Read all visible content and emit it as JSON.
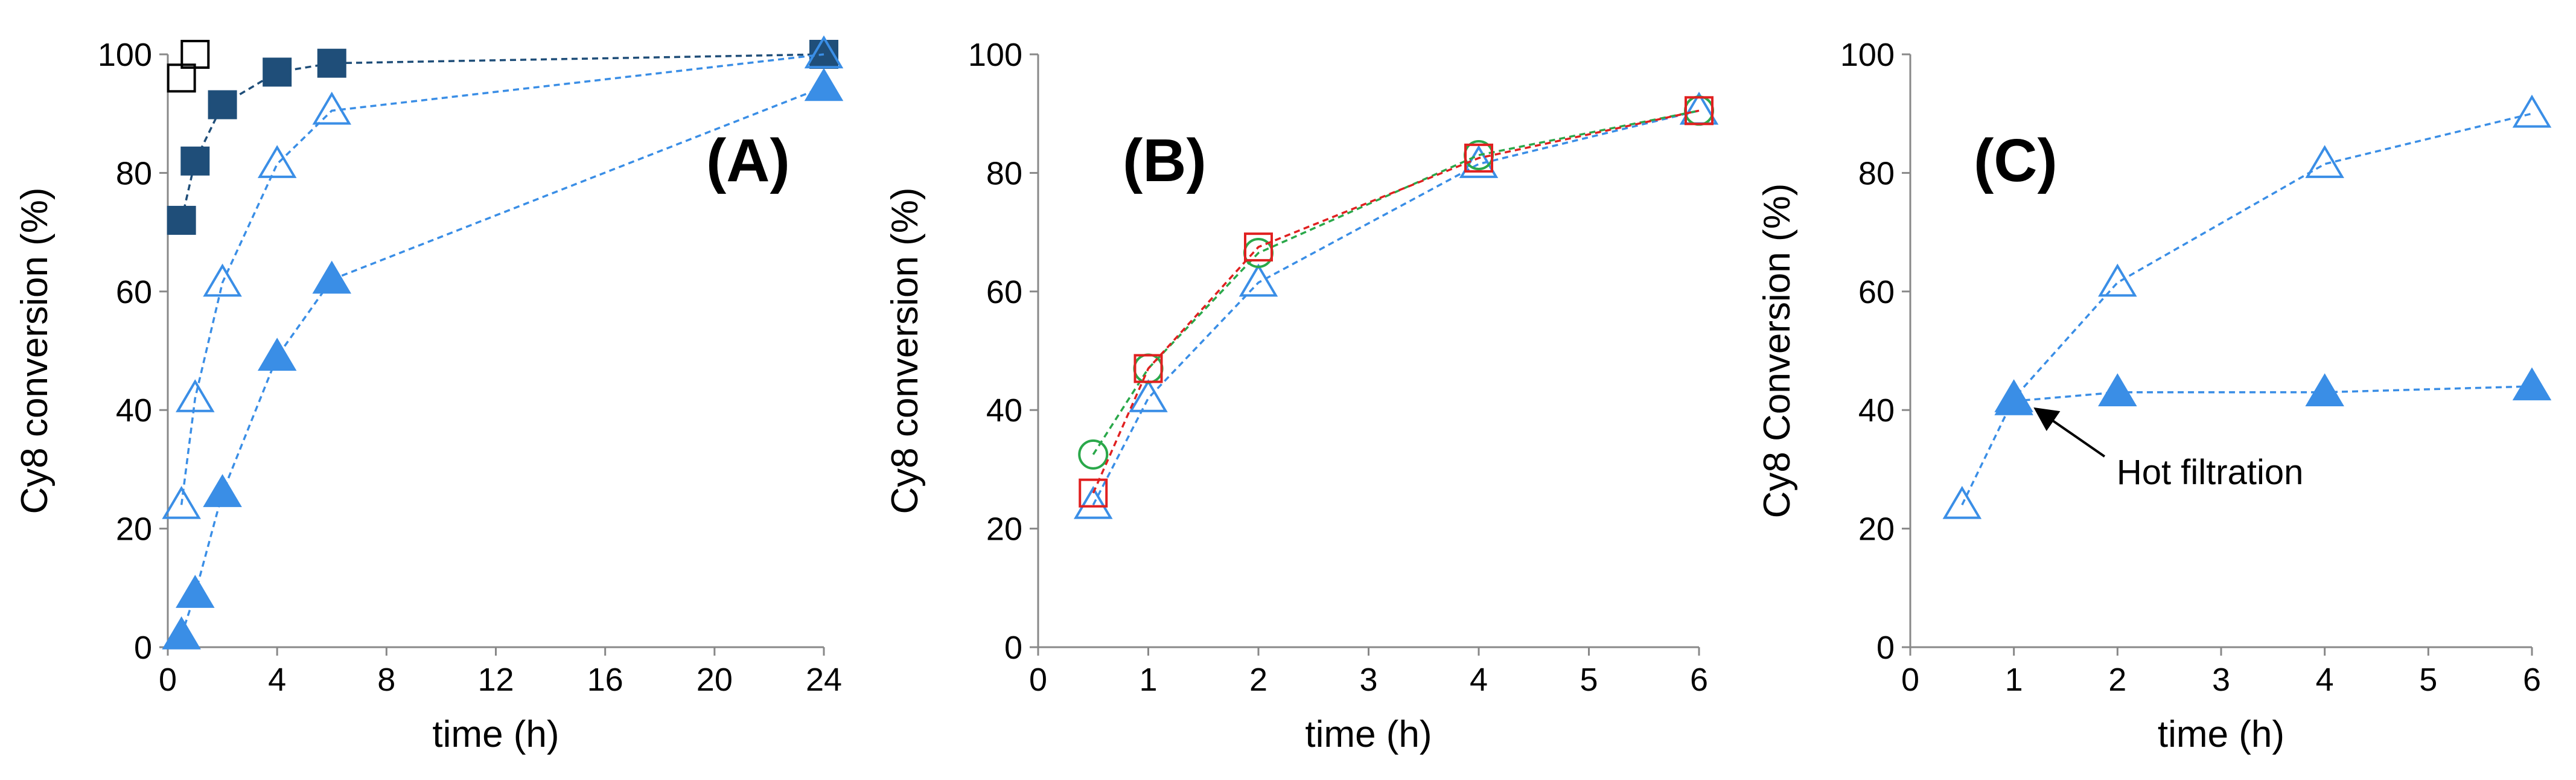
{
  "chart_data": [
    {
      "type": "scatter",
      "panel_label": "(A)",
      "xlabel": "time (h)",
      "ylabel": "Cy8 conversion (%)",
      "xlim": [
        0,
        24
      ],
      "ylim": [
        0,
        100
      ],
      "xticks": [
        0,
        4,
        8,
        12,
        16,
        20,
        24
      ],
      "yticks": [
        0,
        20,
        40,
        60,
        80,
        100
      ],
      "series": [
        {
          "name": "open squares",
          "marker": "square",
          "fill": "none",
          "color": "#000000",
          "line": "none",
          "x": [
            0.5,
            1
          ],
          "y": [
            96,
            100
          ]
        },
        {
          "name": "filled squares",
          "marker": "square",
          "fill": "#1f4e79",
          "color": "#1f4e79",
          "line": "dashed",
          "x": [
            0.5,
            1,
            2,
            4,
            6,
            24
          ],
          "y": [
            72,
            82,
            91.5,
            97,
            98.5,
            100
          ]
        },
        {
          "name": "open triangles",
          "marker": "triangle",
          "fill": "none",
          "color": "#3a8ee6",
          "line": "dashed",
          "x": [
            0.5,
            1,
            2,
            4,
            6,
            24
          ],
          "y": [
            24,
            42,
            61.5,
            81.5,
            90.5,
            100
          ]
        },
        {
          "name": "filled triangles",
          "marker": "triangle",
          "fill": "#3a8ee6",
          "color": "#3a8ee6",
          "line": "dashed",
          "x": [
            0.5,
            1,
            2,
            4,
            6,
            24
          ],
          "y": [
            2,
            9,
            26,
            49,
            62,
            94.5
          ]
        }
      ],
      "annotations": []
    },
    {
      "type": "scatter",
      "panel_label": "(B)",
      "xlabel": "time (h)",
      "ylabel": "Cy8 conversion (%)",
      "xlim": [
        0,
        6
      ],
      "ylim": [
        0,
        100
      ],
      "xticks": [
        0,
        1,
        2,
        3,
        4,
        5,
        6
      ],
      "yticks": [
        0,
        20,
        40,
        60,
        80,
        100
      ],
      "series": [
        {
          "name": "open triangles",
          "marker": "triangle",
          "fill": "none",
          "color": "#3a8ee6",
          "line": "dashed",
          "x": [
            0.5,
            1,
            2,
            4,
            6
          ],
          "y": [
            24,
            42,
            61.5,
            81.5,
            90.5
          ]
        },
        {
          "name": "open circles",
          "marker": "circle",
          "fill": "none",
          "color": "#2aa84a",
          "line": "dashed",
          "x": [
            0.5,
            1,
            2,
            4,
            6
          ],
          "y": [
            32.5,
            47,
            66.5,
            83,
            90.5
          ]
        },
        {
          "name": "open squares",
          "marker": "square",
          "fill": "none",
          "color": "#e02020",
          "line": "dashed",
          "x": [
            0.5,
            1,
            2,
            4,
            6
          ],
          "y": [
            26,
            47,
            67.5,
            82.5,
            90.5
          ]
        }
      ],
      "annotations": []
    },
    {
      "type": "scatter",
      "panel_label": "(C)",
      "xlabel": "time (h)",
      "ylabel": "Cy8 Conversion (%)",
      "xlim": [
        0,
        6
      ],
      "ylim": [
        0,
        100
      ],
      "xticks": [
        0,
        1,
        2,
        3,
        4,
        5,
        6
      ],
      "yticks": [
        0,
        20,
        40,
        60,
        80,
        100
      ],
      "series": [
        {
          "name": "open triangles",
          "marker": "triangle",
          "fill": "none",
          "color": "#3a8ee6",
          "line": "dashed",
          "x": [
            0.5,
            1,
            2,
            4,
            6
          ],
          "y": [
            24,
            42,
            61.5,
            81.5,
            90
          ]
        },
        {
          "name": "filled triangles",
          "marker": "triangle",
          "fill": "#3a8ee6",
          "color": "#3a8ee6",
          "line": "dashed",
          "x": [
            1,
            2,
            4,
            6
          ],
          "y": [
            41.5,
            43,
            43,
            44
          ]
        }
      ],
      "annotations": [
        {
          "text": "Hot filtration",
          "target_x": 1.1,
          "target_y": 41,
          "text_x": 2.05,
          "text_y": 28.5
        }
      ]
    }
  ]
}
